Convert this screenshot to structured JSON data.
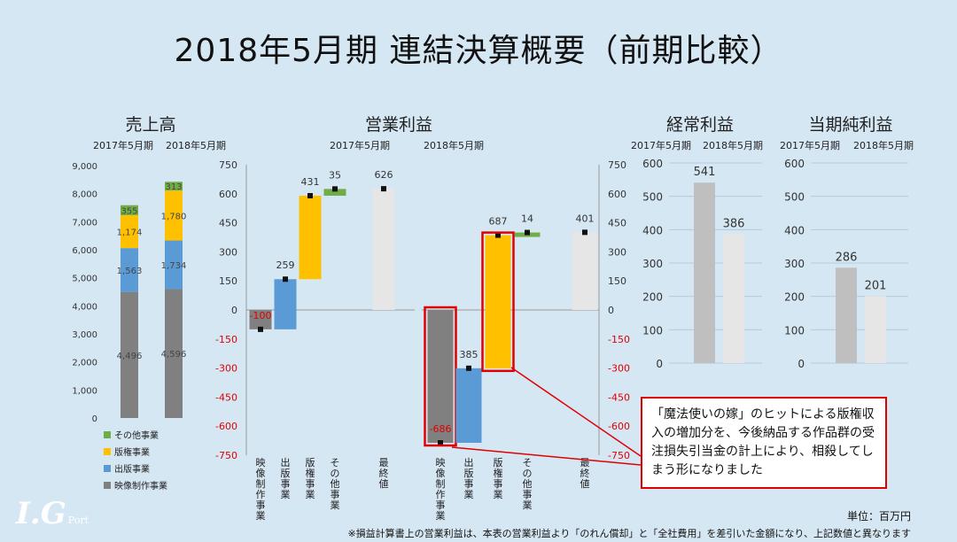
{
  "title": "2018年5月期 連結決算概要（前期比較）",
  "unit_note": "単位：百万円",
  "footnote": "※損益計算書上の営業利益は、本表の営業利益より「のれん償却」と「全社費用」を差引いた金額になり、上記数値と異なります",
  "callout": "「魔法使いの嫁」のヒットによる版権収入の増加分を、今後納品する作品群の受注損失引当金の計上により、相殺してしまう形になりました",
  "logo": {
    "text": "I.G",
    "sub": "Port"
  },
  "colors": {
    "film": "#808080",
    "publishing": "#5b9bd5",
    "licensing": "#ffc000",
    "other": "#70ad47",
    "final": "#e6e6e6",
    "bar_gray": "#bfbfbf",
    "highlight": "#e00000"
  },
  "chart_data": [
    {
      "type": "bar",
      "stacked": true,
      "title": "売上高",
      "categories": [
        "2017年5月期",
        "2018年5月期"
      ],
      "ylim": [
        0,
        9000
      ],
      "yticks": [
        "0",
        "1,000",
        "2,000",
        "3,000",
        "4,000",
        "5,000",
        "6,000",
        "7,000",
        "8,000",
        "9,000"
      ],
      "series": [
        {
          "name": "映像制作事業",
          "values": [
            4496,
            4596
          ],
          "labels": [
            "4,496",
            "4,596"
          ]
        },
        {
          "name": "出版事業",
          "values": [
            1563,
            1734
          ],
          "labels": [
            "1,563",
            "1,734"
          ]
        },
        {
          "name": "版権事業",
          "values": [
            1174,
            1780
          ],
          "labels": [
            "1,174",
            "1,780"
          ]
        },
        {
          "name": "その他事業",
          "values": [
            355,
            313
          ],
          "labels": [
            "355",
            "313"
          ]
        }
      ],
      "legend_order": [
        "その他事業",
        "版権事業",
        "出版事業",
        "映像制作事業"
      ],
      "legend_position": "bottom-left"
    },
    {
      "type": "bar",
      "waterfall": true,
      "title": "営業利益",
      "subtitle": "2017年5月期",
      "categories": [
        "映像制作事業",
        "出版事業",
        "版権事業",
        "その他事業",
        "最終値"
      ],
      "values": [
        -100,
        259,
        431,
        35,
        626
      ],
      "labels": [
        "-100",
        "259",
        "431",
        "35",
        "626"
      ],
      "ylim": [
        -750,
        750
      ],
      "yticks": [
        "-750",
        "-600",
        "-450",
        "-300",
        "-150",
        "0",
        "150",
        "300",
        "450",
        "600",
        "750"
      ]
    },
    {
      "type": "bar",
      "waterfall": true,
      "subtitle": "2018年5月期",
      "categories": [
        "映像制作事業",
        "出版事業",
        "版権事業",
        "その他事業",
        "最終値"
      ],
      "values": [
        -686,
        385,
        687,
        14,
        401
      ],
      "labels": [
        "-686",
        "385",
        "687",
        "14",
        "401"
      ],
      "ylim": [
        -750,
        750
      ],
      "yticks": [
        "-750",
        "-600",
        "-450",
        "-300",
        "-150",
        "0",
        "150",
        "300",
        "450",
        "600",
        "750"
      ]
    },
    {
      "type": "bar",
      "title": "経常利益",
      "categories": [
        "2017年5月期",
        "2018年5月期"
      ],
      "values": [
        541,
        386
      ],
      "labels": [
        "541",
        "386"
      ],
      "ylim": [
        0,
        600
      ],
      "yticks": [
        "0",
        "100",
        "200",
        "300",
        "400",
        "500",
        "600"
      ]
    },
    {
      "type": "bar",
      "title": "当期純利益",
      "categories": [
        "2017年5月期",
        "2018年5月期"
      ],
      "values": [
        286,
        201
      ],
      "labels": [
        "286",
        "201"
      ],
      "ylim": [
        0,
        600
      ],
      "yticks": [
        "0",
        "100",
        "200",
        "300",
        "400",
        "500",
        "600"
      ]
    }
  ]
}
